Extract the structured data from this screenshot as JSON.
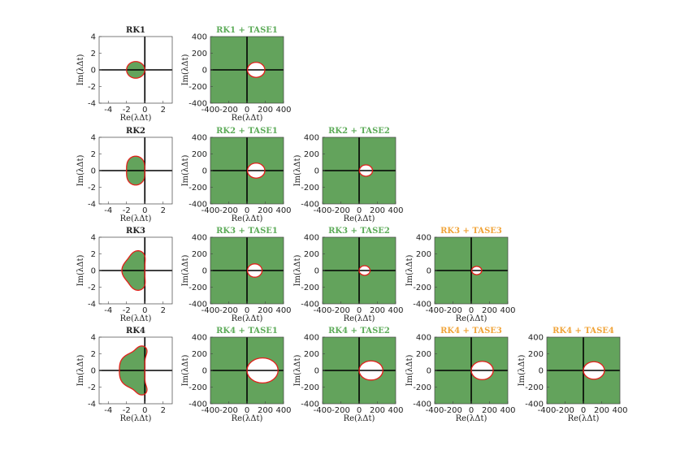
{
  "colors": {
    "region": "#63a35c",
    "boundary": "#e3201b",
    "title_rk": "#222222",
    "title_tase_green": "#5cab58",
    "title_tase_orange": "#f0a43a"
  },
  "chart_data": [
    {
      "type": "stability-region",
      "title": "RK1",
      "title_color": "rk",
      "row": 0,
      "col": 0,
      "xlabel": "Re(λΔt)",
      "ylabel": "Im(λΔt)",
      "xlim": [
        -5,
        3
      ],
      "ylim": [
        -4,
        4
      ],
      "xticks": [
        "-4",
        "-2",
        "0",
        "2"
      ],
      "yticks": [
        "4",
        "2",
        "0",
        "-2",
        "-4"
      ],
      "region": {
        "kind": "rk",
        "order": 1
      },
      "boundary_color": "#e3201b"
    },
    {
      "type": "stability-region",
      "title": "RK1 + TASE1",
      "title_color": "green",
      "row": 0,
      "col": 1,
      "xlabel": "Re(λΔt)",
      "ylabel": "Im(λΔt)",
      "xlim": [
        -400,
        400
      ],
      "ylim": [
        -400,
        400
      ],
      "xticks": [
        "-400",
        "-200",
        "0",
        "200",
        "400"
      ],
      "yticks": [
        "400",
        "200",
        "0",
        "-200",
        "-400"
      ],
      "region": {
        "kind": "complement-ellipse",
        "center": [
          100,
          0
        ],
        "radius_x": 95,
        "radius_y": 90
      }
    },
    {
      "type": "stability-region",
      "title": "RK2",
      "title_color": "rk",
      "row": 1,
      "col": 0,
      "xlabel": "Re(λΔt)",
      "ylabel": "Im(λΔt)",
      "xlim": [
        -5,
        3
      ],
      "ylim": [
        -4,
        4
      ],
      "xticks": [
        "-4",
        "-2",
        "0",
        "2"
      ],
      "yticks": [
        "4",
        "2",
        "0",
        "-2",
        "-4"
      ],
      "region": {
        "kind": "rk",
        "order": 2
      }
    },
    {
      "type": "stability-region",
      "title": "RK2 + TASE1",
      "title_color": "green",
      "row": 1,
      "col": 1,
      "xlabel": "Re(λΔt)",
      "ylabel": "Im(λΔt)",
      "xlim": [
        -400,
        400
      ],
      "ylim": [
        -400,
        400
      ],
      "xticks": [
        "-400",
        "-200",
        "0",
        "200",
        "400"
      ],
      "yticks": [
        "400",
        "200",
        "0",
        "-200",
        "-400"
      ],
      "region": {
        "kind": "complement-ellipse",
        "center": [
          100,
          0
        ],
        "radius_x": 95,
        "radius_y": 90
      }
    },
    {
      "type": "stability-region",
      "title": "RK2 + TASE2",
      "title_color": "green",
      "row": 1,
      "col": 2,
      "xlabel": "Re(λΔt)",
      "ylabel": "Im(λΔt)",
      "xlim": [
        -400,
        400
      ],
      "ylim": [
        -400,
        400
      ],
      "xticks": [
        "-400",
        "-200",
        "0",
        "200",
        "400"
      ],
      "yticks": [
        "400",
        "200",
        "0",
        "-200",
        "-400"
      ],
      "region": {
        "kind": "complement-ellipse",
        "center": [
          75,
          0
        ],
        "radius_x": 72,
        "radius_y": 68
      }
    },
    {
      "type": "stability-region",
      "title": "RK3",
      "title_color": "rk",
      "row": 2,
      "col": 0,
      "xlabel": "Re(λΔt)",
      "ylabel": "Im(λΔt)",
      "xlim": [
        -5,
        3
      ],
      "ylim": [
        -4,
        4
      ],
      "xticks": [
        "-4",
        "-2",
        "0",
        "2"
      ],
      "yticks": [
        "4",
        "2",
        "0",
        "-2",
        "-4"
      ],
      "region": {
        "kind": "rk",
        "order": 3
      }
    },
    {
      "type": "stability-region",
      "title": "RK3 + TASE1",
      "title_color": "green",
      "row": 2,
      "col": 1,
      "xlabel": "Re(λΔt)",
      "ylabel": "Im(λΔt)",
      "xlim": [
        -400,
        400
      ],
      "ylim": [
        -400,
        400
      ],
      "xticks": [
        "-400",
        "-200",
        "0",
        "200",
        "400"
      ],
      "yticks": [
        "400",
        "200",
        "0",
        "-200",
        "-400"
      ],
      "region": {
        "kind": "complement-ellipse",
        "center": [
          85,
          0
        ],
        "radius_x": 80,
        "radius_y": 80
      }
    },
    {
      "type": "stability-region",
      "title": "RK3 + TASE2",
      "title_color": "green",
      "row": 2,
      "col": 2,
      "xlabel": "Re(λΔt)",
      "ylabel": "Im(λΔt)",
      "xlim": [
        -400,
        400
      ],
      "ylim": [
        -400,
        400
      ],
      "xticks": [
        "-400",
        "-200",
        "0",
        "200",
        "400"
      ],
      "yticks": [
        "400",
        "200",
        "0",
        "-200",
        "-400"
      ],
      "region": {
        "kind": "complement-ellipse",
        "center": [
          60,
          0
        ],
        "radius_x": 60,
        "radius_y": 57
      }
    },
    {
      "type": "stability-region",
      "title": "RK3 + TASE3",
      "title_color": "orange",
      "row": 2,
      "col": 3,
      "xlabel": "Re(λΔt)",
      "ylabel": "Im(λΔt)",
      "xlim": [
        -400,
        400
      ],
      "ylim": [
        -400,
        400
      ],
      "xticks": [
        "-400",
        "-200",
        "0",
        "200",
        "400"
      ],
      "yticks": [
        "400",
        "200",
        "0",
        "-200",
        "-400"
      ],
      "region": {
        "kind": "complement-ellipse",
        "center": [
          60,
          0
        ],
        "radius_x": 55,
        "radius_y": 50
      }
    },
    {
      "type": "stability-region",
      "title": "RK4",
      "title_color": "rk",
      "row": 3,
      "col": 0,
      "xlabel": "Re(λΔt)",
      "ylabel": "Im(λΔt)",
      "xlim": [
        -5,
        3
      ],
      "ylim": [
        -4,
        4
      ],
      "xticks": [
        "-4",
        "-2",
        "0",
        "2"
      ],
      "yticks": [
        "4",
        "2",
        "0",
        "-2",
        "-4"
      ],
      "region": {
        "kind": "rk",
        "order": 4
      }
    },
    {
      "type": "stability-region",
      "title": "RK4 + TASE1",
      "title_color": "green",
      "row": 3,
      "col": 1,
      "xlabel": "Re(λΔt)",
      "ylabel": "Im(λΔt)",
      "xlim": [
        -400,
        400
      ],
      "ylim": [
        -400,
        400
      ],
      "xticks": [
        "-400",
        "-200",
        "0",
        "200",
        "400"
      ],
      "yticks": [
        "400",
        "200",
        "0",
        "-200",
        "-400"
      ],
      "region": {
        "kind": "complement-ellipse",
        "center": [
          170,
          0
        ],
        "radius_x": 170,
        "radius_y": 150
      }
    },
    {
      "type": "stability-region",
      "title": "RK4 + TASE2",
      "title_color": "green",
      "row": 3,
      "col": 2,
      "xlabel": "Re(λΔt)",
      "ylabel": "Im(λΔt)",
      "xlim": [
        -400,
        400
      ],
      "ylim": [
        -400,
        400
      ],
      "xticks": [
        "-400",
        "-200",
        "0",
        "200",
        "400"
      ],
      "yticks": [
        "400",
        "200",
        "0",
        "-200",
        "-400"
      ],
      "region": {
        "kind": "complement-ellipse",
        "center": [
          130,
          0
        ],
        "radius_x": 130,
        "radius_y": 115
      }
    },
    {
      "type": "stability-region",
      "title": "RK4 + TASE3",
      "title_color": "orange",
      "row": 3,
      "col": 3,
      "xlabel": "Re(λΔt)",
      "ylabel": "Im(λΔt)",
      "xlim": [
        -400,
        400
      ],
      "ylim": [
        -400,
        400
      ],
      "xticks": [
        "-400",
        "-200",
        "0",
        "200",
        "400"
      ],
      "yticks": [
        "400",
        "200",
        "0",
        "-200",
        "-400"
      ],
      "region": {
        "kind": "complement-ellipse",
        "center": [
          120,
          0
        ],
        "radius_x": 120,
        "radius_y": 110
      }
    },
    {
      "type": "stability-region",
      "title": "RK4 + TASE4",
      "title_color": "orange",
      "row": 3,
      "col": 4,
      "xlabel": "Re(λΔt)",
      "ylabel": "Im(λΔt)",
      "xlim": [
        -400,
        400
      ],
      "ylim": [
        -400,
        400
      ],
      "xticks": [
        "-400",
        "-200",
        "0",
        "200",
        "400"
      ],
      "yticks": [
        "400",
        "200",
        "0",
        "-200",
        "-400"
      ],
      "region": {
        "kind": "complement-ellipse",
        "center": [
          115,
          0
        ],
        "radius_x": 115,
        "radius_y": 105
      }
    }
  ]
}
